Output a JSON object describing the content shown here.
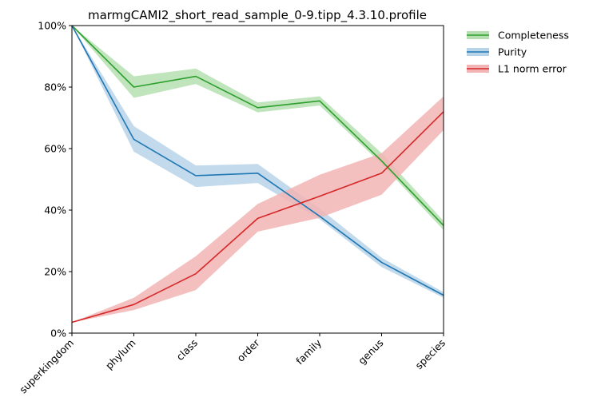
{
  "chart_data": {
    "type": "line",
    "title": "marmgCAMI2_short_read_sample_0-9.tipp_4.3.10.profile",
    "xlabel": "",
    "ylabel": "",
    "categories": [
      "superkingdom",
      "phylum",
      "class",
      "order",
      "family",
      "genus",
      "species"
    ],
    "ylim": [
      0,
      100
    ],
    "yticks": [
      0,
      20,
      40,
      60,
      80,
      100
    ],
    "ytick_labels": [
      "0%",
      "20%",
      "40%",
      "60%",
      "80%",
      "100%"
    ],
    "grid": false,
    "legend_position": "outside top-right",
    "series": [
      {
        "name": "Completeness",
        "color": "#2ca02c",
        "band_color": "#b5dfb0",
        "values": [
          100,
          80,
          83.5,
          73.3,
          75.5,
          56,
          35
        ],
        "lower": [
          100,
          76.5,
          81,
          71.8,
          74,
          55,
          33.5
        ],
        "upper": [
          100,
          83.5,
          86,
          75,
          77,
          58.5,
          36.5
        ]
      },
      {
        "name": "Purity",
        "color": "#1f77b4",
        "band_color": "#b7d3e8",
        "values": [
          100,
          63,
          51.2,
          52,
          38,
          23,
          12.3
        ],
        "lower": [
          100,
          59,
          47.5,
          48.8,
          37,
          21.5,
          11.5
        ],
        "upper": [
          100,
          67.3,
          54.5,
          55,
          40.5,
          24.5,
          13.3
        ]
      },
      {
        "name": "L1 norm error",
        "color": "#d62728",
        "band_color": "#f2b4b4",
        "values": [
          3.5,
          9.3,
          19.3,
          37.3,
          44.5,
          52,
          72
        ],
        "lower": [
          3.5,
          7.5,
          14,
          33,
          37.5,
          45,
          66
        ],
        "upper": [
          3.5,
          11.5,
          25,
          42,
          51.5,
          58.5,
          77
        ]
      }
    ]
  }
}
